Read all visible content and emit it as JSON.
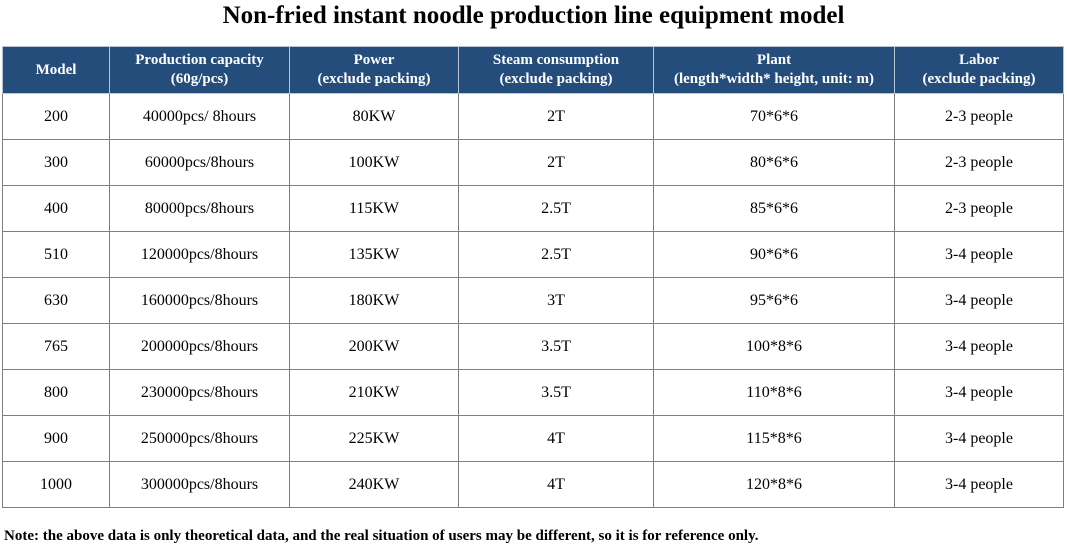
{
  "title": "Non-fried instant noodle production line equipment model",
  "table": {
    "headers": [
      {
        "line1": "Model",
        "line2": ""
      },
      {
        "line1": "Production capacity",
        "line2": "(60g/pcs)"
      },
      {
        "line1": "Power",
        "line2": "(exclude packing)"
      },
      {
        "line1": "Steam consumption",
        "line2": "(exclude packing)"
      },
      {
        "line1": "Plant",
        "line2": "(length*width* height, unit: m)"
      },
      {
        "line1": "Labor",
        "line2": "(exclude packing)"
      }
    ],
    "rows": [
      [
        "200",
        "40000pcs/ 8hours",
        "80KW",
        "2T",
        "70*6*6",
        "2-3 people"
      ],
      [
        "300",
        "60000pcs/8hours",
        "100KW",
        "2T",
        "80*6*6",
        "2-3 people"
      ],
      [
        "400",
        "80000pcs/8hours",
        "115KW",
        "2.5T",
        "85*6*6",
        "2-3 people"
      ],
      [
        "510",
        "120000pcs/8hours",
        "135KW",
        "2.5T",
        "90*6*6",
        "3-4 people"
      ],
      [
        "630",
        "160000pcs/8hours",
        "180KW",
        "3T",
        "95*6*6",
        "3-4 people"
      ],
      [
        "765",
        "200000pcs/8hours",
        "200KW",
        "3.5T",
        "100*8*6",
        "3-4 people"
      ],
      [
        "800",
        "230000pcs/8hours",
        "210KW",
        "3.5T",
        "110*8*6",
        "3-4 people"
      ],
      [
        "900",
        "250000pcs/8hours",
        "225KW",
        "4T",
        "115*8*6",
        "3-4 people"
      ],
      [
        "1000",
        "300000pcs/8hours",
        "240KW",
        "4T",
        "120*8*6",
        "3-4 people"
      ]
    ]
  },
  "note": "Note: the above data is only theoretical data, and the real situation of users may be different, so it is for reference only.",
  "colors": {
    "header_background": "#244d7c",
    "header_text": "#ffffff",
    "cell_border": "#7f7f7f"
  }
}
